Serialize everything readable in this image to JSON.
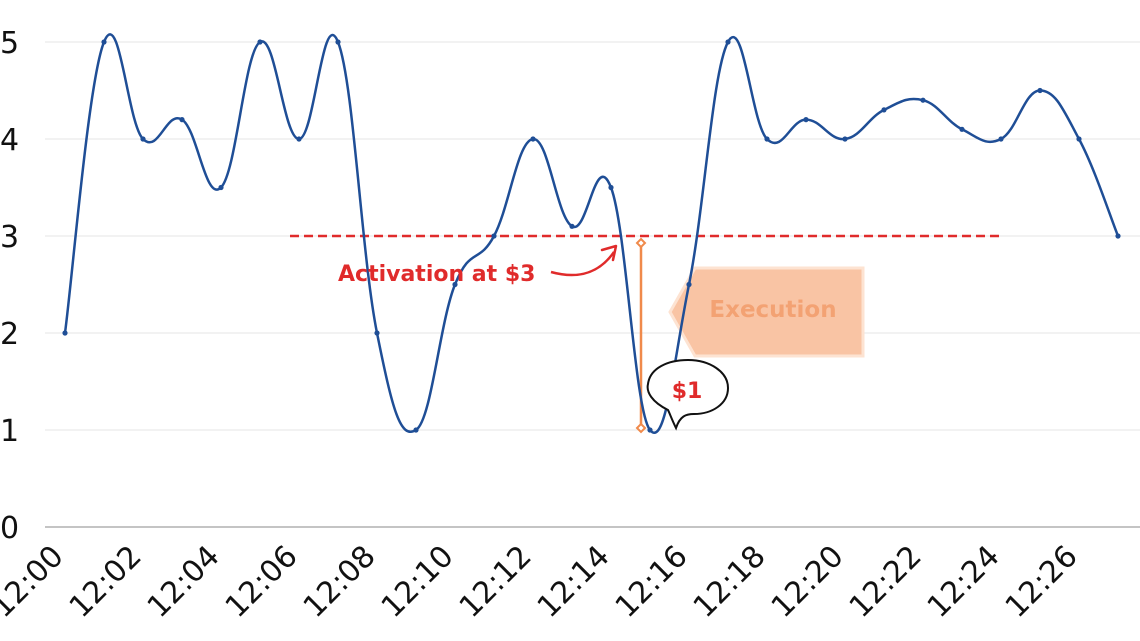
{
  "chart_data": {
    "type": "line",
    "title": "",
    "xlabel": "",
    "ylabel": "",
    "ylim": [
      0,
      5
    ],
    "y_ticks": [
      "0",
      "1",
      "2",
      "3",
      "4",
      "5"
    ],
    "x_tick_labels": [
      "12:00",
      "12:02",
      "12:04",
      "12:06",
      "12:08",
      "12:10",
      "12:12",
      "12:14",
      "12:16",
      "12:18",
      "12:20",
      "12:22",
      "12:24",
      "12:26"
    ],
    "x": [
      "12:00",
      "12:01",
      "12:02",
      "12:03",
      "12:04",
      "12:05",
      "12:06",
      "12:07",
      "12:08",
      "12:09",
      "12:10",
      "12:11",
      "12:12",
      "12:13",
      "12:14",
      "12:15",
      "12:16",
      "12:17",
      "12:18",
      "12:19",
      "12:20",
      "12:21",
      "12:22",
      "12:23",
      "12:24",
      "12:25",
      "12:26",
      "12:27"
    ],
    "series": [
      {
        "values": [
          2,
          5,
          4,
          4.2,
          3.5,
          5,
          4,
          5,
          2,
          1,
          2.5,
          3,
          4,
          3.1,
          3.5,
          1,
          2.5,
          5,
          4,
          4.2,
          4,
          4.3,
          4.4,
          4.1,
          4,
          4.5,
          4,
          3
        ]
      }
    ],
    "grid": true,
    "threshold": {
      "value": 3,
      "label": "Activation at $3"
    },
    "execution": {
      "x": "12:14",
      "from": 3,
      "to": 1,
      "label": "Execution",
      "price_label": "$1"
    },
    "colors": {
      "line": "#1f4e96",
      "threshold": "#e02b2b",
      "execution_box": "#f9c4a4",
      "execution_bar": "#f08a4b",
      "grid": "#e4e4e4",
      "axis": "#b0b0b0"
    }
  }
}
